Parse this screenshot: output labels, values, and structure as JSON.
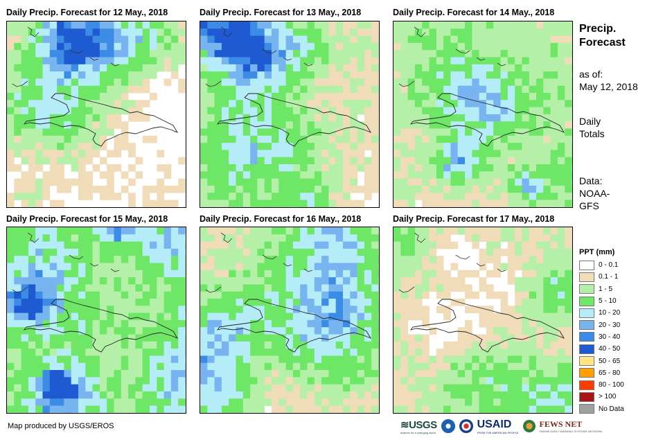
{
  "panels": [
    {
      "title": "Daily Precip. Forecast for 12 May., 2018"
    },
    {
      "title": "Daily Precip. Forecast for 13 May., 2018"
    },
    {
      "title": "Daily Precip. Forecast for 14 May., 2018"
    },
    {
      "title": "Daily Precip. Forecast for 15 May., 2018"
    },
    {
      "title": "Daily Precip. Forecast for 16 May., 2018"
    },
    {
      "title": "Daily Precip. Forecast for 17 May., 2018"
    }
  ],
  "sidebar": {
    "title_line1": "Precip.",
    "title_line2": "Forecast",
    "asof_label": "as of:",
    "asof_date": "May 12, 2018",
    "totals_line1": "Daily",
    "totals_line2": "Totals",
    "data_line1": "Data:",
    "data_line2": "NOAA-",
    "data_line3": "GFS"
  },
  "legend": {
    "title": "PPT (mm)",
    "items": [
      {
        "label": "0 - 0.1",
        "color": "#ffffff"
      },
      {
        "label": "0.1 - 1",
        "color": "#f0dcb8"
      },
      {
        "label": "1 - 5",
        "color": "#b4f0a8"
      },
      {
        "label": "5 - 10",
        "color": "#6ee666"
      },
      {
        "label": "10 - 20",
        "color": "#b4ecf8"
      },
      {
        "label": "20 - 30",
        "color": "#78b4f0"
      },
      {
        "label": "30 - 40",
        "color": "#3c8ce6"
      },
      {
        "label": "40 - 50",
        "color": "#1e5ad2"
      },
      {
        "label": "50 - 65",
        "color": "#ffe682"
      },
      {
        "label": "65 - 80",
        "color": "#ffa000"
      },
      {
        "label": "80 - 100",
        "color": "#ff3c00"
      },
      {
        "label": "> 100",
        "color": "#aa1414"
      },
      {
        "label": "No Data",
        "color": "#a0a0a0"
      }
    ]
  },
  "footer": {
    "credit": "Map produced by USGS/EROS",
    "logo_usgs": "≋USGS",
    "logo_usgs_tag": "science for a changing world",
    "logo_usaid": "USAID",
    "logo_usaid_tag": "FROM THE AMERICAN PEOPLE",
    "logo_fews": "FEWS NET",
    "logo_fews_tag": "FAMINE EARLY WARNING SYSTEMS NETWORK"
  },
  "map_icons": [
    "precipitation-grid",
    "hispaniola-outline"
  ]
}
